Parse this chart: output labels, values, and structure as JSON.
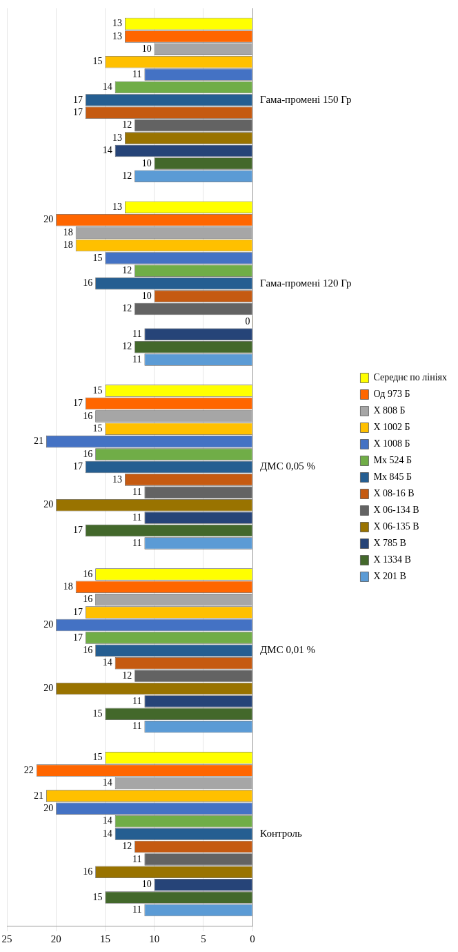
{
  "chart_data": {
    "type": "bar",
    "orientation": "horizontal",
    "categories": [
      "Гама-промені 150 Гр",
      "Гама-промені 120 Гр",
      "ДМС 0,05 %",
      "ДМС 0,01 %",
      "Контроль"
    ],
    "series": [
      {
        "name": "Середнє по лініях",
        "color": "#ffff00",
        "values": [
          13,
          13,
          15,
          16,
          15
        ]
      },
      {
        "name": "Од 973 Б",
        "color": "#ff6600",
        "values": [
          13,
          20,
          17,
          18,
          22
        ]
      },
      {
        "name": "Х 808 Б",
        "color": "#a6a6a6",
        "values": [
          10,
          18,
          16,
          16,
          14
        ]
      },
      {
        "name": "Х 1002 Б",
        "color": "#ffc000",
        "values": [
          15,
          18,
          15,
          17,
          21
        ]
      },
      {
        "name": "Х 1008 Б",
        "color": "#4472c4",
        "values": [
          11,
          15,
          21,
          20,
          20
        ]
      },
      {
        "name": "Мх 524 Б",
        "color": "#70ad47",
        "values": [
          14,
          12,
          16,
          17,
          14
        ]
      },
      {
        "name": "Мх 845 Б",
        "color": "#255e91",
        "values": [
          17,
          16,
          17,
          16,
          14
        ]
      },
      {
        "name": "Х 08-16 В",
        "color": "#c55a11",
        "values": [
          17,
          10,
          13,
          14,
          12
        ]
      },
      {
        "name": "Х 06-134 В",
        "color": "#636363",
        "values": [
          12,
          12,
          11,
          12,
          11
        ]
      },
      {
        "name": "Х 06-135 В",
        "color": "#997300",
        "values": [
          13,
          0,
          20,
          20,
          16
        ]
      },
      {
        "name": "Х 785 В",
        "color": "#264478",
        "values": [
          14,
          11,
          11,
          11,
          10
        ]
      },
      {
        "name": "Х 1334 В",
        "color": "#43682b",
        "values": [
          10,
          12,
          17,
          15,
          15
        ]
      },
      {
        "name": "Х 201 В",
        "color": "#5b9bd5",
        "values": [
          12,
          11,
          11,
          11,
          11
        ]
      }
    ],
    "xlim": [
      25,
      0
    ],
    "xticks": [
      0,
      5,
      10,
      15,
      20,
      25
    ],
    "grid": "x",
    "legend": "right",
    "data_labels": true
  }
}
